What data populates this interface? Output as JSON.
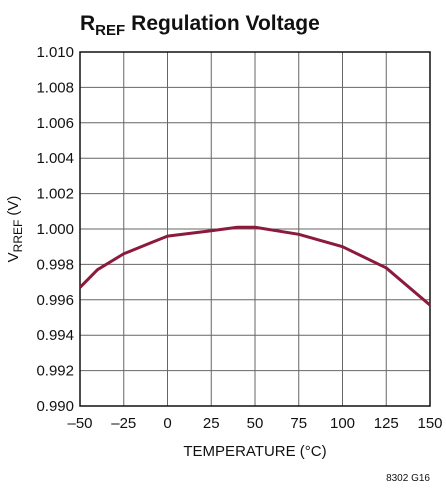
{
  "chart_data": {
    "type": "line",
    "title": [
      "R",
      "REF",
      "Regulation Voltage"
    ],
    "ylabel": [
      "V",
      "RREF",
      "(V)"
    ],
    "xlabel": "TEMPERATURE (°C)",
    "note": "8302 G16",
    "x": [
      -50,
      -40,
      -25,
      -10,
      0,
      25,
      40,
      50,
      75,
      100,
      125,
      150
    ],
    "values": [
      0.9967,
      0.9977,
      0.9986,
      0.9992,
      0.9996,
      0.9999,
      1.0001,
      1.0001,
      0.9997,
      0.999,
      0.9978,
      0.9957
    ],
    "color": "#8b1a3c",
    "xlim": [
      -50,
      150
    ],
    "xticks": [
      {
        "value": -50,
        "label": "–50"
      },
      {
        "value": -25,
        "label": "–25"
      },
      0,
      25,
      50,
      75,
      100,
      125,
      150
    ],
    "ylim": [
      0.99,
      1.01
    ],
    "yticks": [
      {
        "value": 0.99,
        "label": "0.990"
      },
      0.992,
      0.994,
      0.996,
      0.998,
      {
        "value": 1,
        "label": "1.000"
      },
      1.002,
      1.004,
      1.006,
      1.008,
      {
        "value": 1.01,
        "label": "1.010"
      }
    ],
    "grid": true
  }
}
